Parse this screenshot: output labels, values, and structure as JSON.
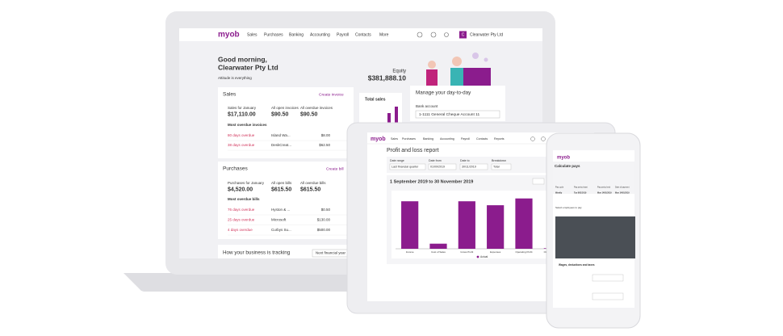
{
  "laptop": {
    "nav": {
      "logo": "myob",
      "items": [
        "Sales",
        "Purchases",
        "Banking",
        "Accounting",
        "Payroll",
        "Contacts",
        "More"
      ],
      "company_initial": "C",
      "company": "Clearwater Pty Ltd"
    },
    "greeting": {
      "line1": "Good morning,",
      "line2": "Clearwater Pty Ltd",
      "tagline": "Attitude is everything"
    },
    "equity": {
      "label": "Equity",
      "value": "$381,888.10"
    },
    "sales": {
      "title": "Sales",
      "action": "Create invoice",
      "stats": [
        {
          "label": "Sales for January",
          "value": "$17,110.00"
        },
        {
          "label": "All open invoices",
          "value": "$90.50"
        },
        {
          "label": "All overdue invoices",
          "value": "$90.50"
        }
      ],
      "list_title": "Most overdue invoices",
      "rows": [
        [
          "80 days overdue",
          "Island Wa...",
          "$8.00"
        ],
        [
          "38 days overdue",
          "DeskCreat...",
          "$62.50"
        ]
      ]
    },
    "total_sales": {
      "title": "Total sales"
    },
    "purchases": {
      "title": "Purchases",
      "action": "Create bill",
      "stats": [
        {
          "label": "Purchases for January",
          "value": "$4,520.00"
        },
        {
          "label": "All open bills",
          "value": "$615.50"
        },
        {
          "label": "All overdue bills",
          "value": "$615.50"
        }
      ],
      "list_title": "Most overdue bills",
      "rows": [
        [
          "76 days overdue",
          "Hyston & ...",
          "$0.50"
        ],
        [
          "25 days overdue",
          "Microsoft",
          "$130.00"
        ],
        [
          "4 days overdue",
          "Curbys Su...",
          "$500.00"
        ]
      ]
    },
    "tracking": {
      "title": "How your business is tracking",
      "select": "Next financial year"
    },
    "manage": {
      "title": "Manage your day-to-day",
      "label": "Bank account",
      "account": "1-1111 General Cheque Account 11"
    }
  },
  "tablet": {
    "nav": {
      "logo": "myob",
      "items": [
        "Sales",
        "Purchases",
        "Banking",
        "Accounting",
        "Payroll",
        "Contacts",
        "Reports"
      ]
    },
    "title": "Profit and loss report",
    "filters": [
      {
        "label": "Date range",
        "value": "Last financial quarter"
      },
      {
        "label": "Date from",
        "value": "01/09/2019"
      },
      {
        "label": "Date to",
        "value": "30/11/2019"
      },
      {
        "label": "Breakdown",
        "value": "Total"
      }
    ],
    "period": "1 September 2019 to 30 November 2019"
  },
  "chart_data": {
    "type": "bar",
    "categories": [
      "Income",
      "Cost of Sales",
      "Gross Profit",
      "Expenses",
      "Operating Profit",
      "Other Expenses"
    ],
    "series": [
      {
        "name": "Actual",
        "color": "#8b1c8d",
        "values": [
          84,
          9,
          84,
          77,
          89,
          1
        ]
      }
    ],
    "ylim": [
      0,
      100
    ]
  },
  "phone": {
    "logo": "myob",
    "title": "Calculate pays",
    "fields": [
      [
        "Pay cycle",
        "Weekly"
      ],
      [
        "Pay period start",
        "Tue 8/01/2019"
      ],
      [
        "Pay period end",
        "Mon 14/01/2019"
      ],
      [
        "Date of payment",
        "Mon 14/01/2019"
      ]
    ],
    "select": "Select employees to pay",
    "wages": "Wages, deductions and taxes"
  }
}
